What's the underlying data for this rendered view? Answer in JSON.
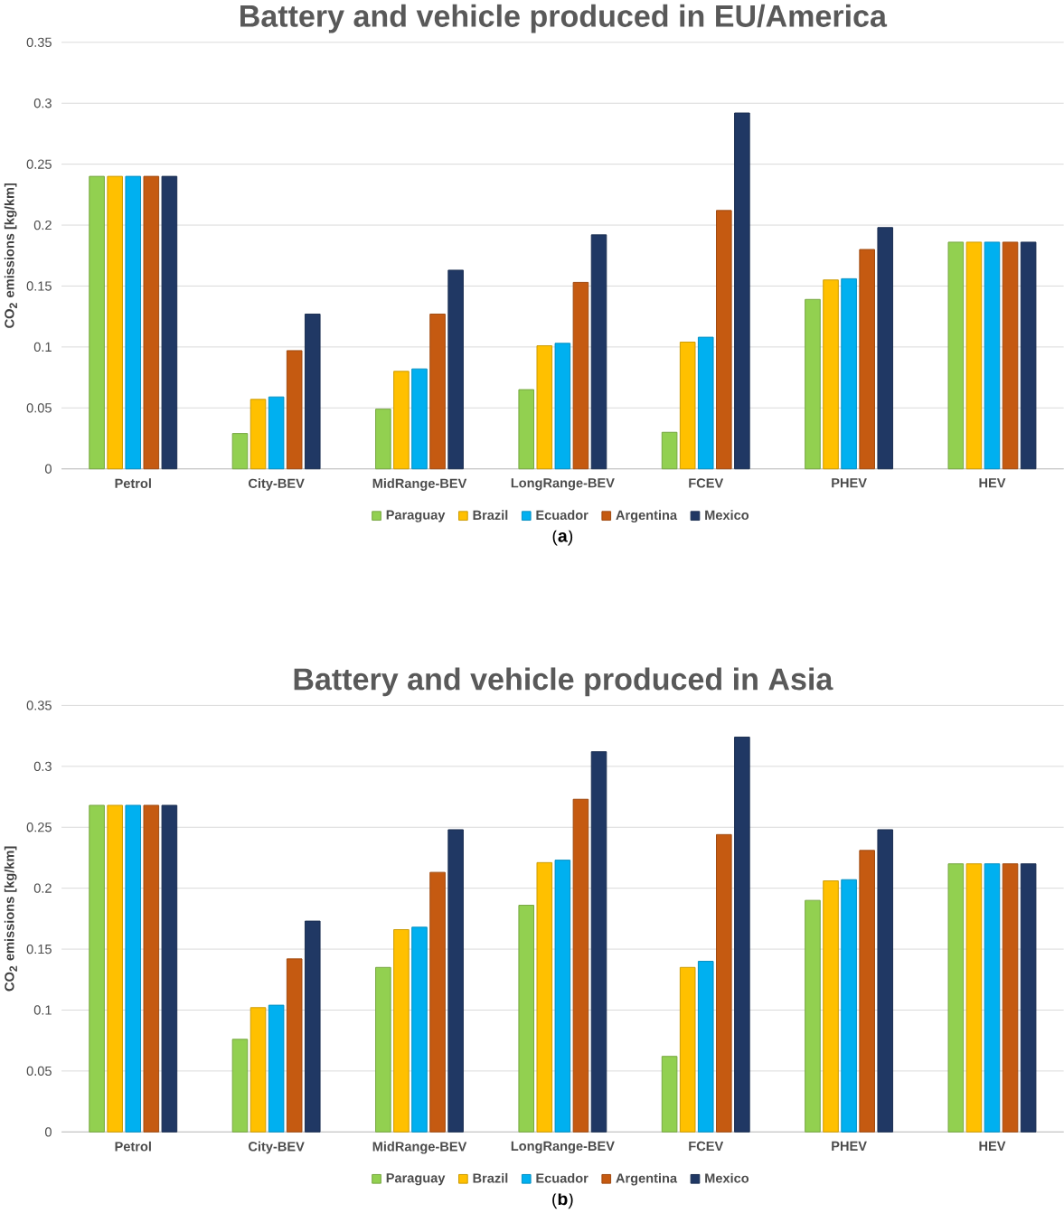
{
  "chart_data": [
    {
      "type": "bar",
      "title": "Battery and vehicle produced in EU/America",
      "ylabel": "CO$_{2}$ emissions [kg/km]",
      "categories": [
        "Petrol",
        "City-BEV",
        "MidRange-BEV",
        "LongRange-BEV",
        "FCEV",
        "PHEV",
        "HEV"
      ],
      "ylim": [
        0,
        0.35
      ],
      "yticks": [
        0,
        0.05,
        0.1,
        0.15,
        0.2,
        0.25,
        0.3,
        0.35
      ],
      "grid": "y",
      "legend": "bottom",
      "annotations": [
        "(**a**)"
      ],
      "series": [
        {
          "name": "Paraguay",
          "color": "#92d050",
          "values": [
            0.24,
            0.029,
            0.049,
            0.065,
            0.03,
            0.139,
            0.186
          ]
        },
        {
          "name": "Brazil",
          "color": "#ffc000",
          "values": [
            0.24,
            0.057,
            0.08,
            0.101,
            0.104,
            0.155,
            0.186
          ]
        },
        {
          "name": "Ecuador",
          "color": "#00b0f0",
          "values": [
            0.24,
            0.059,
            0.082,
            0.103,
            0.108,
            0.156,
            0.186
          ]
        },
        {
          "name": "Argentina",
          "color": "#c55a11",
          "values": [
            0.24,
            0.097,
            0.127,
            0.153,
            0.212,
            0.18,
            0.186
          ]
        },
        {
          "name": "Mexico",
          "color": "#203864",
          "values": [
            0.24,
            0.127,
            0.163,
            0.192,
            0.292,
            0.198,
            0.186
          ]
        }
      ]
    },
    {
      "type": "bar",
      "title": "Battery and vehicle produced in Asia",
      "ylabel": "CO$_{2}$ emissions [kg/km]",
      "categories": [
        "Petrol",
        "City-BEV",
        "MidRange-BEV",
        "LongRange-BEV",
        "FCEV",
        "PHEV",
        "HEV"
      ],
      "ylim": [
        0,
        0.35
      ],
      "yticks": [
        0,
        0.05,
        0.1,
        0.15,
        0.2,
        0.25,
        0.3,
        0.35
      ],
      "grid": "y",
      "legend": "bottom",
      "annotations": [
        "(**b**)"
      ],
      "series": [
        {
          "name": "Paraguay",
          "color": "#92d050",
          "values": [
            0.268,
            0.076,
            0.135,
            0.186,
            0.062,
            0.19,
            0.22
          ]
        },
        {
          "name": "Brazil",
          "color": "#ffc000",
          "values": [
            0.268,
            0.102,
            0.166,
            0.221,
            0.135,
            0.206,
            0.22
          ]
        },
        {
          "name": "Ecuador",
          "color": "#00b0f0",
          "values": [
            0.268,
            0.104,
            0.168,
            0.223,
            0.14,
            0.207,
            0.22
          ]
        },
        {
          "name": "Argentina",
          "color": "#c55a11",
          "values": [
            0.268,
            0.142,
            0.213,
            0.273,
            0.244,
            0.231,
            0.22
          ]
        },
        {
          "name": "Mexico",
          "color": "#203864",
          "values": [
            0.268,
            0.173,
            0.248,
            0.312,
            0.324,
            0.248,
            0.22
          ]
        }
      ]
    }
  ]
}
